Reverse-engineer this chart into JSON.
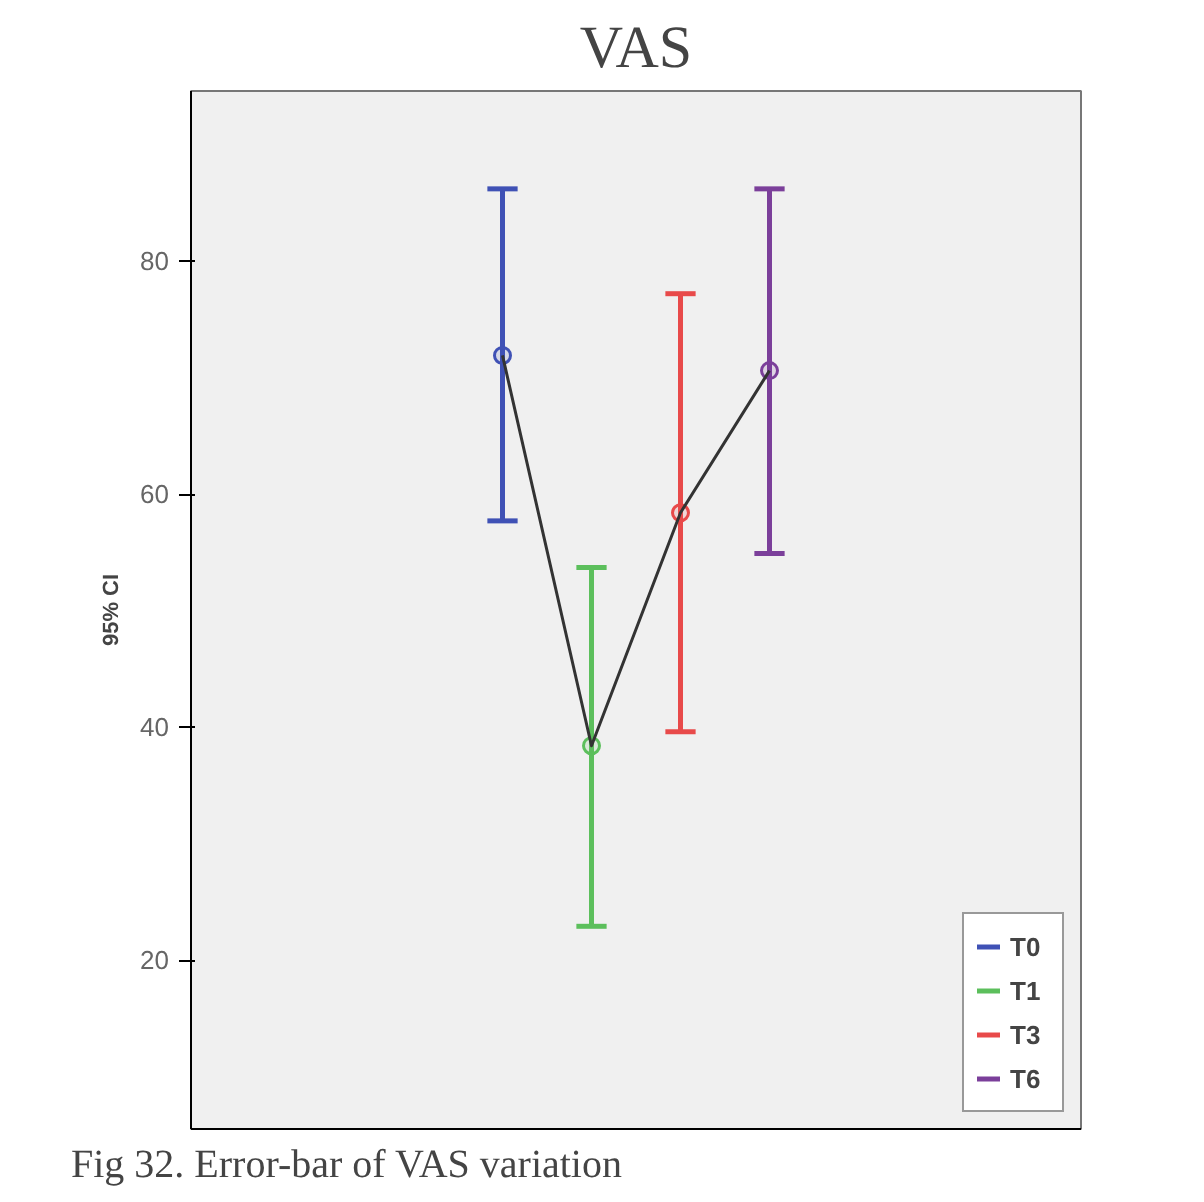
{
  "chart_data": {
    "type": "scatter",
    "title": "VAS",
    "ylabel": "95% CI",
    "categories": [
      null,
      null,
      null,
      null,
      null,
      null,
      null,
      null,
      null,
      null
    ],
    "ylim": [
      5.5,
      94.6
    ],
    "yticks": [
      20,
      40,
      60,
      80
    ],
    "grid": false,
    "legend": "bottom right",
    "marker": "circle",
    "series": [
      {
        "name": "T0",
        "color": "#3f51b5",
        "values": [
          null,
          null,
          null,
          71.9,
          null,
          null,
          null,
          null,
          null,
          null
        ],
        "errors": [
          null,
          null,
          null,
          [
            57.7,
            86.2
          ],
          null,
          null,
          null,
          null,
          null,
          null
        ]
      },
      {
        "name": "T1",
        "color": "#5cbf5c",
        "values": [
          null,
          null,
          null,
          null,
          38.4,
          null,
          null,
          null,
          null,
          null
        ],
        "errors": [
          null,
          null,
          null,
          null,
          [
            22.9,
            53.7
          ],
          null,
          null,
          null,
          null,
          null
        ]
      },
      {
        "name": "T3",
        "color": "#e84a4a",
        "values": [
          null,
          null,
          null,
          null,
          null,
          58.4,
          null,
          null,
          null,
          null
        ],
        "errors": [
          null,
          null,
          null,
          null,
          null,
          [
            39.6,
            77.2
          ],
          null,
          null,
          null,
          null
        ]
      },
      {
        "name": "T6",
        "color": "#7b3f9a",
        "values": [
          null,
          null,
          null,
          null,
          null,
          null,
          70.6,
          null,
          null,
          null
        ],
        "errors": [
          null,
          null,
          null,
          null,
          null,
          null,
          [
            54.9,
            86.2
          ],
          null,
          null,
          null
        ]
      },
      {
        "type": "line",
        "color": "#333333",
        "marker": "none",
        "values": [
          null,
          null,
          null,
          71.9,
          38.4,
          58.4,
          70.6,
          null,
          null,
          null
        ]
      }
    ],
    "annotations": [
      "Fig 32. Error-bar of VAS variation"
    ]
  }
}
